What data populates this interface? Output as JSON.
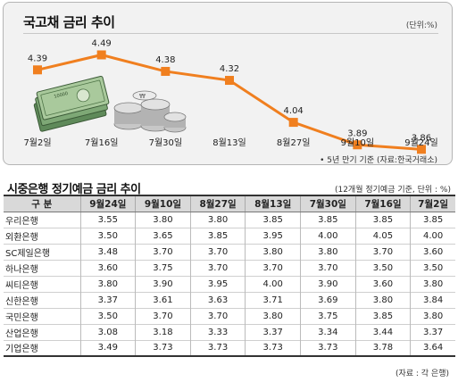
{
  "chart_data": {
    "type": "line",
    "title": "국고채 금리 추이",
    "unit": "(단위:%)",
    "note": "• 5년 만기 기준 (자료:한국거래소)",
    "categories": [
      "7월2일",
      "7월16일",
      "7월30일",
      "8월13일",
      "8월27일",
      "9월10일",
      "9월24일"
    ],
    "values": [
      4.39,
      4.49,
      4.38,
      4.32,
      4.04,
      3.89,
      3.86
    ],
    "value_labels": [
      "4.39",
      "4.49",
      "4.38",
      "4.32",
      "4.04",
      "3.89",
      "3.86"
    ],
    "ylim": [
      3.6,
      4.6
    ],
    "colors": {
      "line": "#f07f1f",
      "marker": "#f07f1f"
    },
    "banknote_text": "10000"
  },
  "table": {
    "title": "시중은행 정기예금 금리 추이",
    "note": "(12개월 정기예금 기준, 단위 : %)",
    "headers": [
      "구   분",
      "9월24일",
      "9월10일",
      "8월27일",
      "8월13일",
      "7월30일",
      "7월16일",
      "7월2일"
    ],
    "rows": [
      [
        "우리은행",
        "3.55",
        "3.80",
        "3.80",
        "3.85",
        "3.85",
        "3.85",
        "3.85"
      ],
      [
        "외환은행",
        "3.50",
        "3.65",
        "3.85",
        "3.95",
        "4.00",
        "4.05",
        "4.00"
      ],
      [
        "SC제일은행",
        "3.48",
        "3.70",
        "3.70",
        "3.80",
        "3.80",
        "3.70",
        "3.60"
      ],
      [
        "하나은행",
        "3.60",
        "3.75",
        "3.70",
        "3.70",
        "3.70",
        "3.50",
        "3.50"
      ],
      [
        "씨티은행",
        "3.80",
        "3.90",
        "3.95",
        "4.00",
        "3.90",
        "3.60",
        "3.80"
      ],
      [
        "신한은행",
        "3.37",
        "3.61",
        "3.63",
        "3.71",
        "3.69",
        "3.80",
        "3.84"
      ],
      [
        "국민은행",
        "3.50",
        "3.70",
        "3.70",
        "3.80",
        "3.75",
        "3.85",
        "3.80"
      ],
      [
        "산업은행",
        "3.08",
        "3.18",
        "3.33",
        "3.37",
        "3.34",
        "3.44",
        "3.37"
      ],
      [
        "기업은행",
        "3.49",
        "3.73",
        "3.73",
        "3.73",
        "3.73",
        "3.78",
        "3.64"
      ]
    ],
    "source": "(자료 : 각 은행)"
  }
}
